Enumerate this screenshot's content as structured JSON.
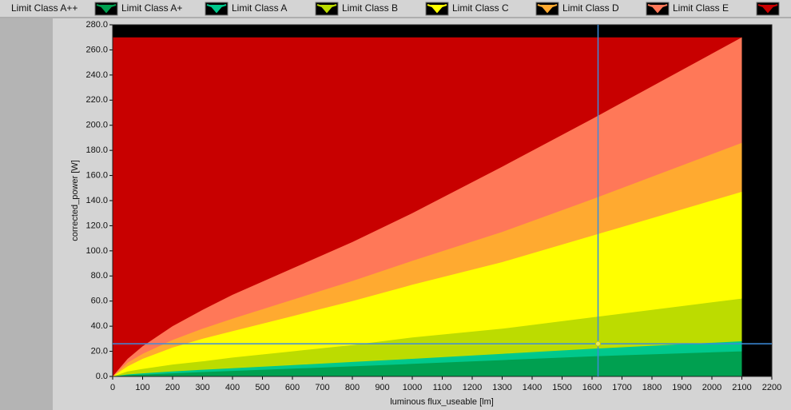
{
  "chart_data": {
    "type": "area",
    "x_label": "luminous flux_useable [lm]",
    "y_label": "corrected_power [W]",
    "x": [
      0,
      50,
      100,
      200,
      300,
      400,
      600,
      800,
      1000,
      1300,
      1600,
      2100
    ],
    "series": [
      {
        "name": "Limit Class A++",
        "color": "#00a050",
        "values": [
          0,
          1,
          1.5,
          2.5,
          3.5,
          4.4,
          6.2,
          8,
          10,
          13,
          16,
          20
        ]
      },
      {
        "name": "Limit Class A+",
        "color": "#00c88c",
        "values": [
          0,
          1.6,
          2.5,
          4,
          5.3,
          6.5,
          9,
          11.5,
          14,
          18,
          22,
          28
        ]
      },
      {
        "name": "Limit Class A",
        "color": "#bcdc00",
        "values": [
          0,
          4,
          6,
          9.5,
          12,
          15,
          20,
          25,
          31,
          38,
          47,
          62
        ]
      },
      {
        "name": "Limit Class B",
        "color": "#ffff00",
        "values": [
          0,
          8,
          14,
          23,
          30,
          36,
          48,
          60,
          73,
          91,
          112,
          147
        ]
      },
      {
        "name": "Limit Class C",
        "color": "#ffaa30",
        "values": [
          0,
          11,
          18,
          29,
          38,
          46,
          61,
          76,
          92,
          115,
          141,
          186
        ]
      },
      {
        "name": "Limit Class D",
        "color": "#ff7858",
        "values": [
          0,
          14,
          24,
          40,
          53,
          65,
          86,
          107,
          130,
          167,
          205,
          270
        ]
      },
      {
        "name": "Limit Class E",
        "color": "#c80000",
        "values": [
          270,
          270,
          270,
          270,
          270,
          270,
          270,
          270,
          270,
          270,
          270,
          270
        ]
      }
    ],
    "cursor": {
      "x": 1620,
      "y": 26,
      "color": "#3c8cdc"
    },
    "xlim": [
      0,
      2200
    ],
    "ylim": [
      0,
      280
    ],
    "xticks": [
      0,
      100,
      200,
      300,
      400,
      500,
      600,
      700,
      800,
      900,
      1000,
      1100,
      1200,
      1300,
      1400,
      1500,
      1600,
      1700,
      1800,
      1900,
      2000,
      2100,
      2200
    ],
    "yticks": [
      {
        "value": 0,
        "label": "0.0"
      },
      {
        "value": 20,
        "label": "20.0"
      },
      {
        "value": 40,
        "label": "40.0"
      },
      {
        "value": 60,
        "label": "60.0"
      },
      {
        "value": 80,
        "label": "80.0"
      },
      {
        "value": 100,
        "label": "100.0"
      },
      {
        "value": 120,
        "label": "120.0"
      },
      {
        "value": 140,
        "label": "140.0"
      },
      {
        "value": 160,
        "label": "160.0"
      },
      {
        "value": 180,
        "label": "180.0"
      },
      {
        "value": 200,
        "label": "200.0"
      },
      {
        "value": 220,
        "label": "220.0"
      },
      {
        "value": 240,
        "label": "240.0"
      },
      {
        "value": 260,
        "label": "260.0"
      },
      {
        "value": 280,
        "label": "280.0"
      }
    ]
  }
}
